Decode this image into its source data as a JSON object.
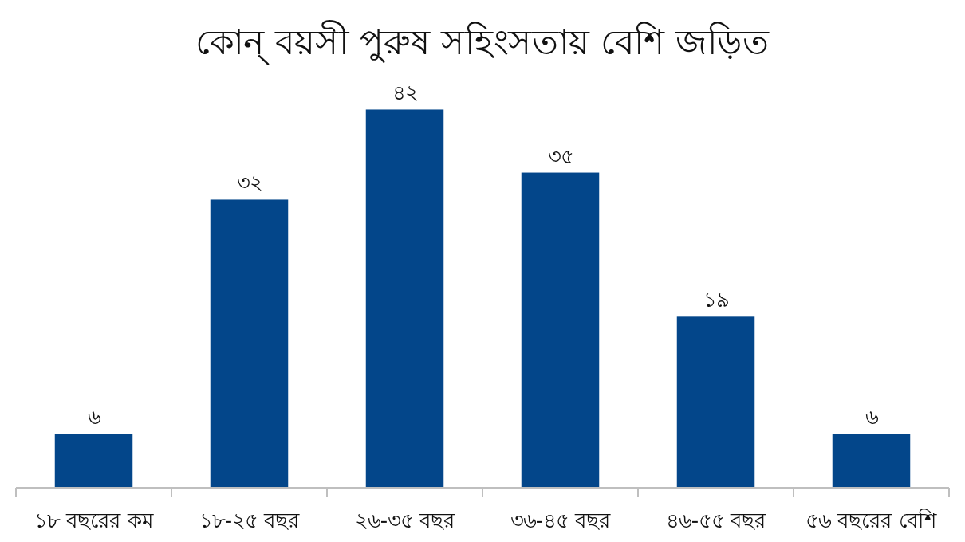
{
  "chart_data": {
    "type": "bar",
    "title": "কোন্ বয়সী পুরুষ সহিংসতায় বেশি জড়িত",
    "categories": [
      "১৮ বছরের কম",
      "১৮-২৫ বছর",
      "২৬-৩৫ বছর",
      "৩৬-৪৫ বছর",
      "৪৬-৫৫ বছর",
      "৫৬ বছরের বেশি"
    ],
    "values": [
      6,
      32,
      42,
      35,
      19,
      6
    ],
    "value_labels": [
      "৬",
      "৩২",
      "৪২",
      "৩৫",
      "১৯",
      "৬"
    ],
    "color": "#03468a"
  }
}
